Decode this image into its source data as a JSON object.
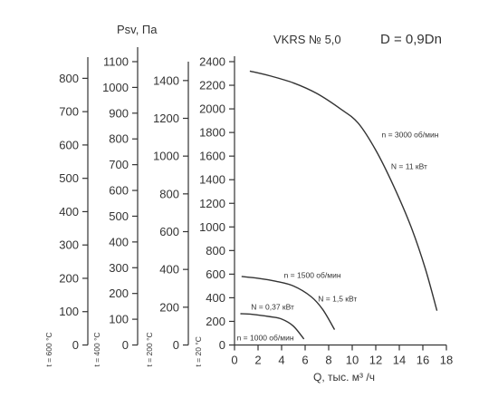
{
  "title": "VKRS № 5,0",
  "diameter_label": "D = 0,9Dn",
  "y_axis_title": "Psv, Па",
  "x_axis_title": "Q, тыс. м³ /ч",
  "colors": {
    "axis": "#333333",
    "curve": "#333333",
    "text": "#333333"
  },
  "chart_data": {
    "type": "line",
    "x": {
      "label": "Q, тыс. м³ /ч",
      "range": [
        0,
        18
      ],
      "ticks": [
        0,
        2,
        4,
        6,
        8,
        10,
        12,
        14,
        16,
        18
      ]
    },
    "y_main": {
      "temperature_label": "t = 20 °C",
      "range": [
        0,
        2400
      ],
      "ticks": [
        0,
        200,
        400,
        600,
        800,
        1000,
        1200,
        1400,
        1600,
        1800,
        2000,
        2200,
        2400
      ]
    },
    "y_secondary": [
      {
        "temperature_label": "t = 200 °C",
        "range": [
          0,
          1500
        ],
        "ticks": [
          0,
          200,
          400,
          600,
          800,
          1000,
          1200,
          1400
        ]
      },
      {
        "temperature_label": "t = 400 °C",
        "label": "Psv, Па",
        "range": [
          0,
          1100
        ],
        "ticks": [
          0,
          100,
          200,
          300,
          400,
          500,
          600,
          700,
          800,
          900,
          1000,
          1100
        ]
      },
      {
        "temperature_label": "t = 600 °C",
        "range": [
          0,
          850
        ],
        "ticks": [
          0,
          100,
          200,
          300,
          400,
          500,
          600,
          700,
          800
        ]
      }
    ],
    "series": [
      {
        "speed_label": "n = 3000 об/мин",
        "power_label": "N = 11 кВт",
        "points": [
          [
            1.3,
            2320
          ],
          [
            3,
            2280
          ],
          [
            5,
            2220
          ],
          [
            7,
            2130
          ],
          [
            9,
            2000
          ],
          [
            10.5,
            1880
          ],
          [
            12,
            1650
          ],
          [
            13.5,
            1350
          ],
          [
            15,
            1000
          ],
          [
            16.2,
            650
          ],
          [
            17.2,
            290
          ]
        ]
      },
      {
        "speed_label": "n = 1500 об/мин",
        "power_label": "N = 1,5 кВт",
        "points": [
          [
            0.6,
            580
          ],
          [
            2,
            565
          ],
          [
            3.5,
            540
          ],
          [
            5,
            500
          ],
          [
            6.5,
            410
          ],
          [
            7.5,
            300
          ],
          [
            8.5,
            130
          ]
        ]
      },
      {
        "speed_label": "n = 1000 об/мин",
        "power_label": "N = 0,37 кВт",
        "points": [
          [
            0.5,
            265
          ],
          [
            1.5,
            260
          ],
          [
            3,
            240
          ],
          [
            4,
            220
          ],
          [
            5,
            160
          ],
          [
            5.9,
            50
          ]
        ]
      }
    ]
  }
}
